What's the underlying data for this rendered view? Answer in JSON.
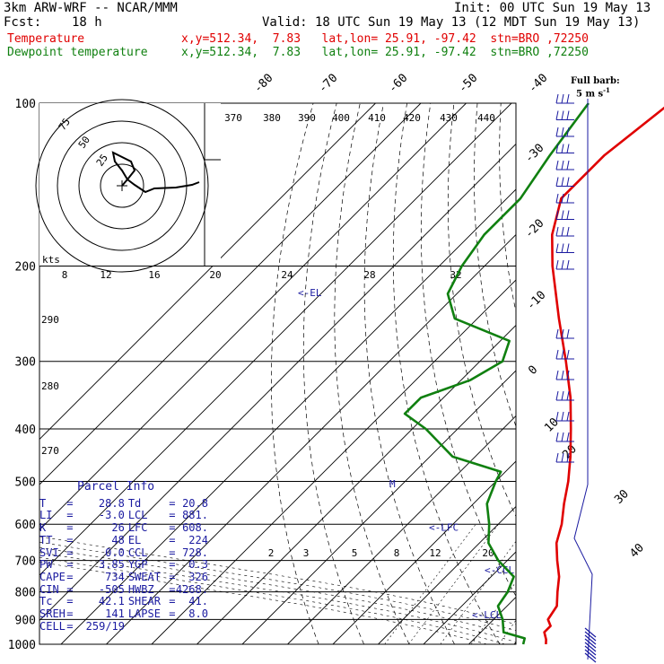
{
  "header": {
    "model": "3km ARW-WRF -- NCAR/MMM",
    "init": "Init: 00 UTC Sun 19 May 13",
    "fcst_label": "Fcst:",
    "fcst_value": "18 h",
    "valid": "Valid: 18 UTC Sun 19 May 13 (12 MDT Sun 19 May 13)",
    "temp_label": "Temperature",
    "temp_info": "x,y=512.34,  7.83   lat,lon= 25.91, -97.42  stn=BRO ,72250",
    "dew_label": "Dewpoint temperature",
    "dew_info": "x,y=512.34,  7.83   lat,lon= 25.91, -97.42  stn=BRO ,72250"
  },
  "colors": {
    "temperature": "#e00000",
    "dewpoint": "#108010",
    "annotation": "#1a1aa0",
    "grid": "#000000"
  },
  "barb_title": {
    "line1": "Full barb:",
    "line2": "5 m s",
    "sup": "-1"
  },
  "parcel_info": {
    "title": "Parcel Info",
    "rows": [
      {
        "k1": "T",
        "v1": "28.8",
        "k2": "Td",
        "v2": "20.8"
      },
      {
        "k1": "LI",
        "v1": "-3.0",
        "k2": "LCL",
        "v2": "881."
      },
      {
        "k1": "K",
        "v1": "26",
        "k2": "LFC",
        "v2": "608."
      },
      {
        "k1": "TT",
        "v1": "48",
        "k2": "EL",
        "v2": "224"
      },
      {
        "k1": "SVI",
        "v1": "0.0",
        "k2": "CCL",
        "v2": "728."
      },
      {
        "k1": "PW",
        "v1": "3.85",
        "k2": "YGP",
        "v2": "0.3"
      },
      {
        "k1": "CAPE",
        "v1": "734",
        "k2": "SWEAT",
        "v2": "326"
      },
      {
        "k1": "CIN",
        "v1": "-505",
        "k2": "HWBZ",
        "v2": "4268."
      },
      {
        "k1": "Tc",
        "v1": "42.1",
        "k2": "SHEAR",
        "v2": "41."
      },
      {
        "k1": "SREH",
        "v1": "141",
        "k2": "LAPSE",
        "v2": "8.0"
      },
      {
        "k1": "CELL",
        "v1": "259/19",
        "k2": "",
        "v2": ""
      }
    ]
  },
  "chart_data": {
    "type": "line",
    "pressure_levels": [
      "100",
      "200",
      "300",
      "400",
      "500",
      "600",
      "700",
      "800",
      "900",
      "1000"
    ],
    "isotherm_labels_top": [
      "-80",
      "-70",
      "-60",
      "-50",
      "-40"
    ],
    "isotherm_labels_right": [
      "-30",
      "-20",
      "-10",
      "0",
      "10",
      "20",
      "30",
      "40"
    ],
    "theta_labels": [
      "370",
      "380",
      "390",
      "400",
      "410",
      "420",
      "430",
      "440"
    ],
    "mixing_ratio_labels": [
      "2",
      "3",
      "5",
      "8",
      "12",
      "20"
    ],
    "hodograph": {
      "unit_label": "kts",
      "ring_labels": [
        "25",
        "50",
        "75"
      ],
      "speed_ticks": [
        "8",
        "12",
        "16",
        "20",
        "24",
        "28",
        "32"
      ],
      "side_labels": [
        "290",
        "280",
        "270"
      ]
    },
    "level_markers": [
      {
        "label": "EL",
        "pressure": 224
      },
      {
        "label": "M",
        "pressure": 505
      },
      {
        "label": "LFC",
        "pressure": 608
      },
      {
        "label": "CCL",
        "pressure": 728
      },
      {
        "label": "LCL",
        "pressure": 881
      }
    ],
    "series": [
      {
        "name": "Temperature",
        "points": [
          [
            1000,
            27
          ],
          [
            980,
            26
          ],
          [
            950,
            24
          ],
          [
            925,
            24
          ],
          [
            900,
            22
          ],
          [
            850,
            21
          ],
          [
            800,
            18
          ],
          [
            750,
            15
          ],
          [
            700,
            11
          ],
          [
            650,
            7
          ],
          [
            600,
            4
          ],
          [
            550,
            0
          ],
          [
            500,
            -4
          ],
          [
            450,
            -9
          ],
          [
            400,
            -15
          ],
          [
            350,
            -22
          ],
          [
            300,
            -31
          ],
          [
            250,
            -42
          ],
          [
            200,
            -55
          ],
          [
            175,
            -62
          ],
          [
            150,
            -68
          ],
          [
            125,
            -68
          ],
          [
            100,
            -65
          ]
        ]
      },
      {
        "name": "Dewpoint temperature",
        "points": [
          [
            1000,
            22
          ],
          [
            975,
            21
          ],
          [
            950,
            15
          ],
          [
            900,
            12
          ],
          [
            850,
            8
          ],
          [
            800,
            7
          ],
          [
            750,
            5
          ],
          [
            700,
            -2
          ],
          [
            650,
            -8
          ],
          [
            600,
            -12
          ],
          [
            550,
            -17
          ],
          [
            500,
            -20
          ],
          [
            480,
            -21
          ],
          [
            450,
            -35
          ],
          [
            400,
            -47
          ],
          [
            375,
            -55
          ],
          [
            350,
            -55
          ],
          [
            325,
            -48
          ],
          [
            300,
            -45
          ],
          [
            275,
            -48
          ],
          [
            250,
            -65
          ],
          [
            225,
            -72
          ],
          [
            200,
            -75
          ],
          [
            175,
            -77
          ],
          [
            150,
            -77
          ],
          [
            125,
            -80
          ],
          [
            100,
            -83
          ]
        ]
      }
    ],
    "wind_barb_levels": [
      105,
      120,
      135,
      150,
      165,
      180,
      200,
      220,
      240,
      260,
      285,
      310,
      340,
      370,
      400,
      430,
      460,
      490
    ]
  }
}
